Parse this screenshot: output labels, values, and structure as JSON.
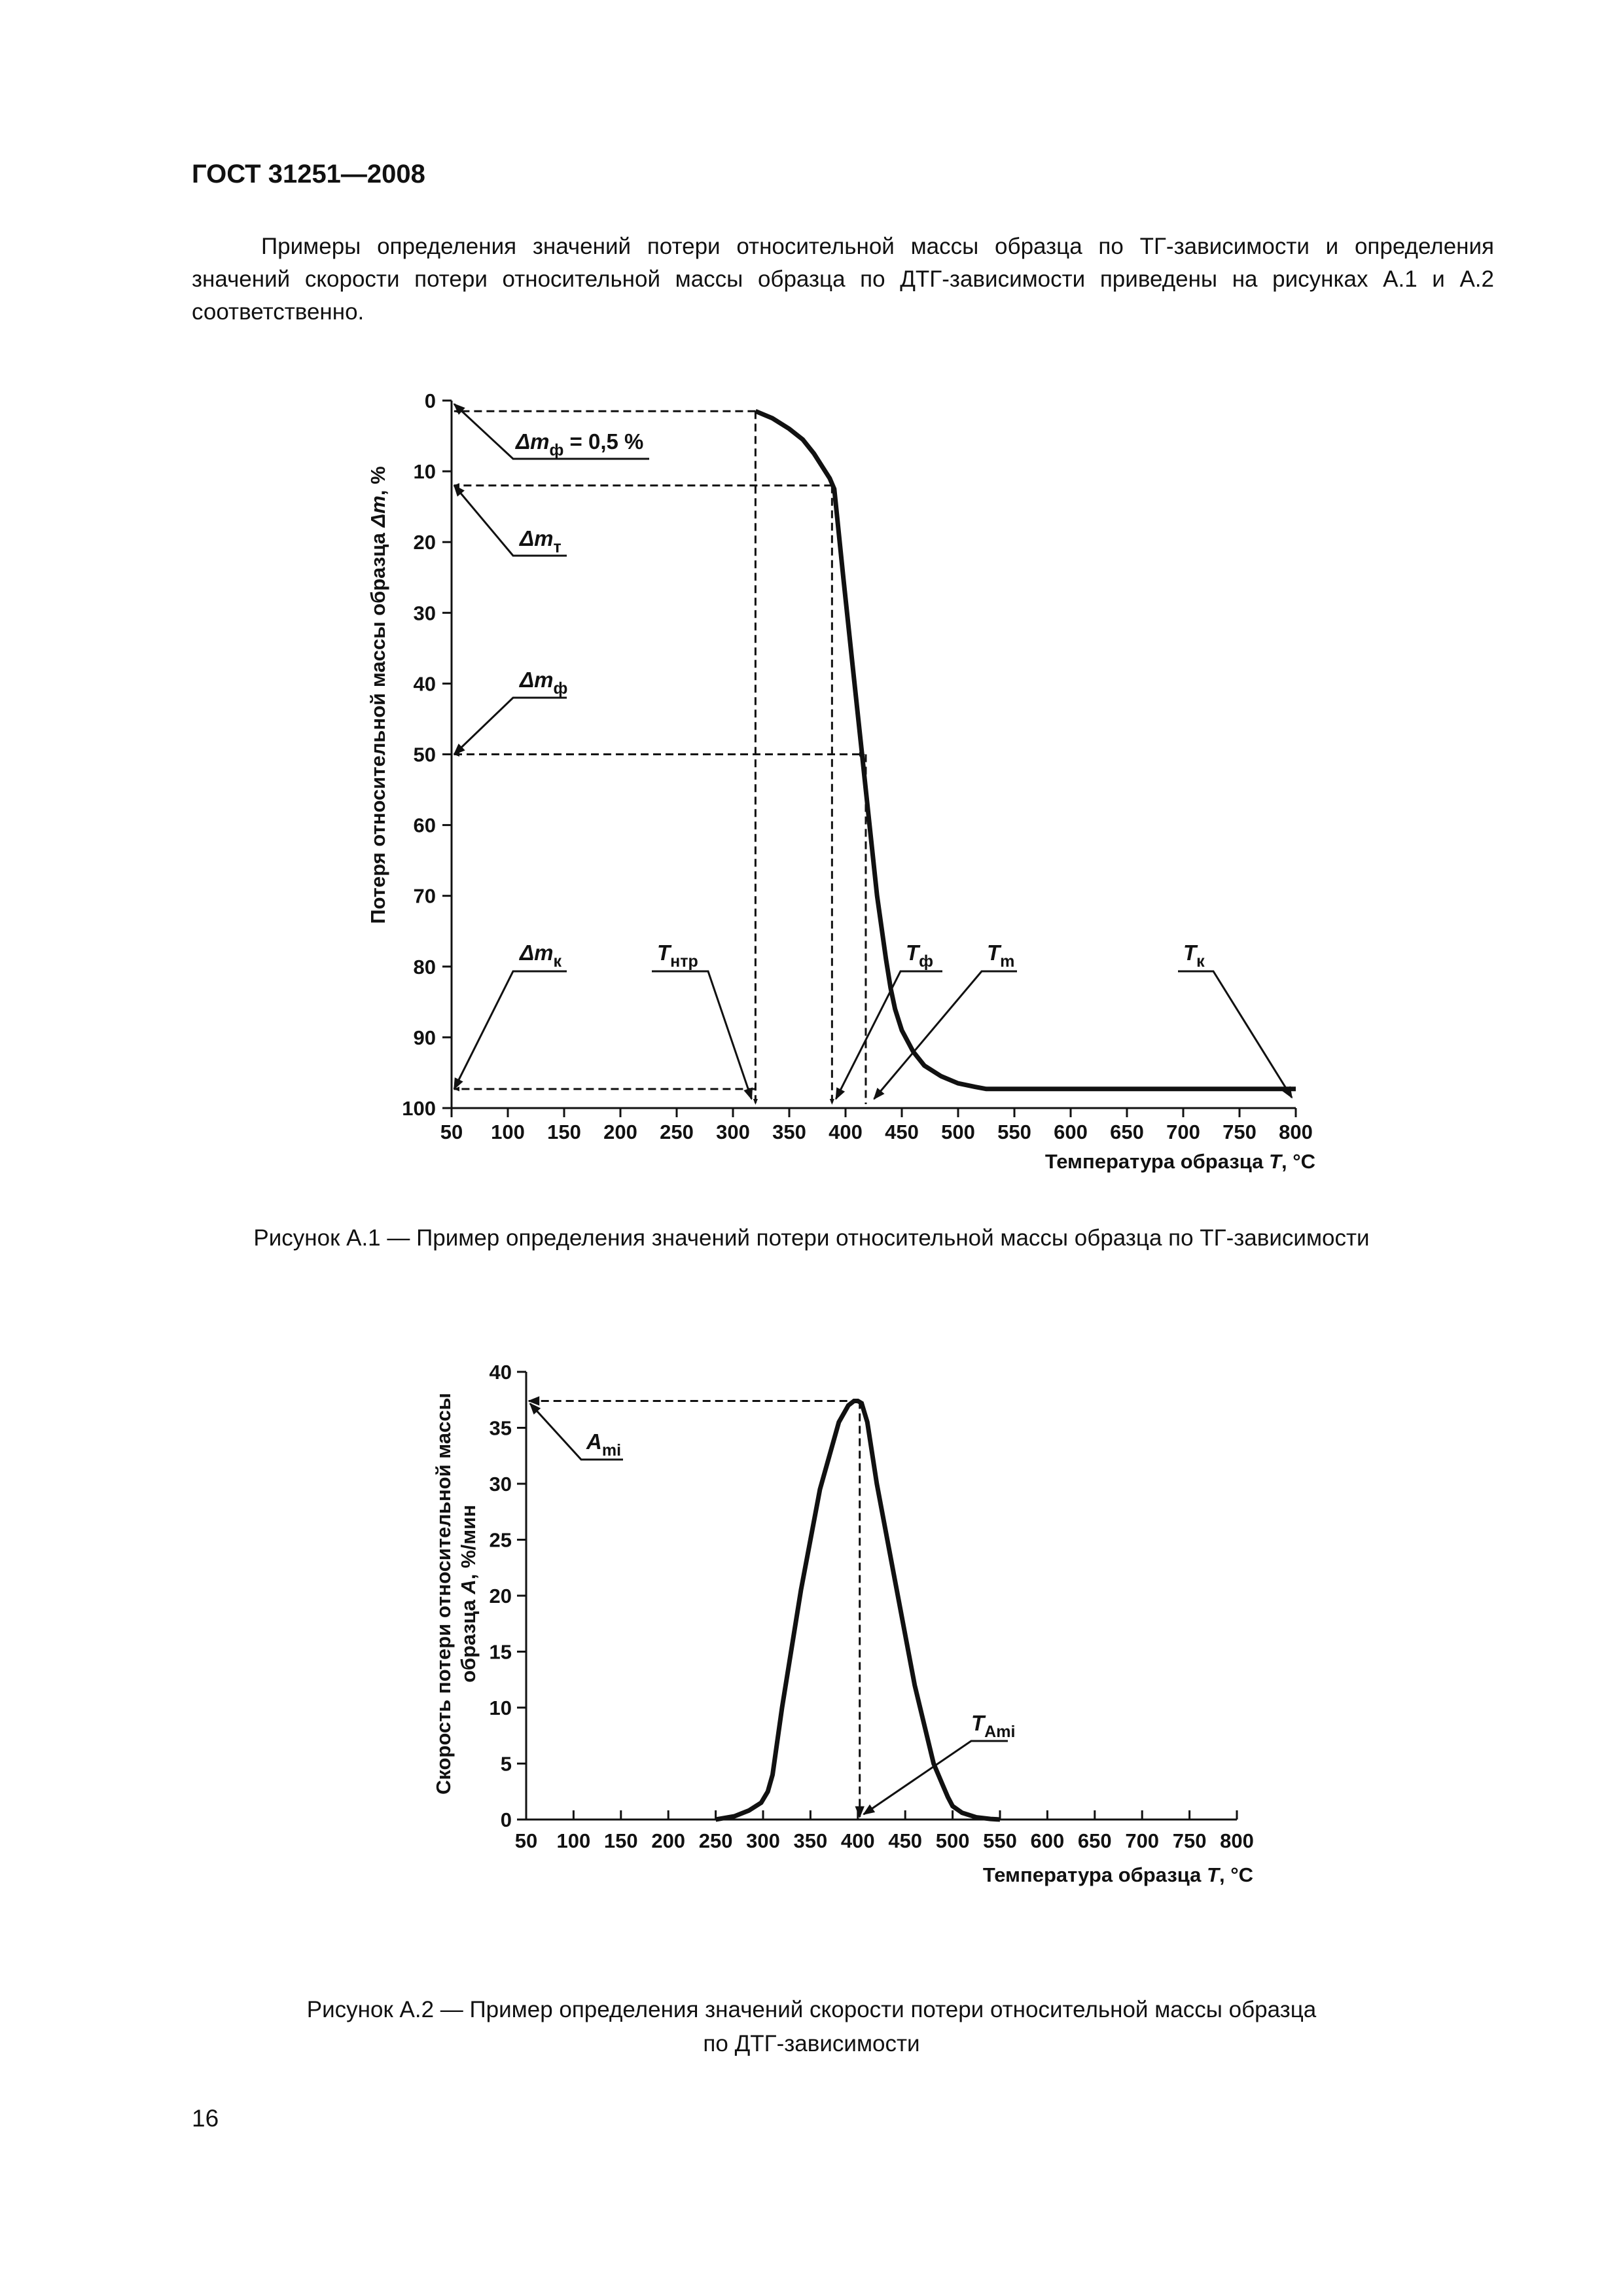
{
  "document": {
    "header": "ГОСТ 31251—2008",
    "intro": "Примеры определения значений потери относительной массы образца по ТГ-зависимости и определения значений скорости потери относительной массы образца по ДТГ-зависимости приведены на рисунках А.1 и А.2 соответственно.",
    "page_number": "16"
  },
  "chart_data": [
    {
      "type": "line",
      "figure": "A.1",
      "caption": "Рисунок А.1 — Пример определения значений потери относительной массы образца по ТГ-зависимости",
      "ylabel_prefix": "Потеря относительной массы образца ",
      "ylabel_symbol": "Δm",
      "ylabel_suffix": ", %",
      "xlabel_prefix": "Температура образца ",
      "xlabel_symbol": "T",
      "xlabel_suffix": ", °C",
      "xlim": [
        50,
        800
      ],
      "ylim": [
        0,
        100
      ],
      "y_inverted": true,
      "xticks": [
        50,
        100,
        150,
        200,
        250,
        300,
        350,
        400,
        450,
        500,
        550,
        600,
        650,
        700,
        750,
        800
      ],
      "yticks": [
        0,
        10,
        20,
        30,
        40,
        50,
        60,
        70,
        80,
        90,
        100
      ],
      "grid": false,
      "series": [
        {
          "x": [
            320,
            335,
            350,
            362,
            372,
            380,
            386,
            390,
            398,
            406,
            414,
            420,
            428,
            436,
            440,
            444,
            450,
            460,
            470,
            485,
            500,
            515,
            525,
            560,
            650,
            750,
            800
          ],
          "y": [
            1.5,
            2.5,
            4,
            5.5,
            7.5,
            9.5,
            11,
            12.5,
            25,
            37,
            49,
            58,
            70,
            79,
            83,
            86,
            89,
            92,
            94,
            95.5,
            96.5,
            97,
            97.3,
            97.3,
            97.3,
            97.3,
            97.3
          ]
        }
      ],
      "annotations": [
        {
          "base": "Δm",
          "sub": "ф",
          "rest": " = 0,5 %"
        },
        {
          "base": "Δm",
          "sub": "т",
          "rest": ""
        },
        {
          "base": "Δm",
          "sub": "ф",
          "rest": ""
        },
        {
          "base": "Δm",
          "sub": "к",
          "rest": ""
        },
        {
          "base": "T",
          "sub": "нтр",
          "rest": ""
        },
        {
          "base": "T",
          "sub": "ф",
          "rest": ""
        },
        {
          "base": "T",
          "sub": "m",
          "rest": ""
        },
        {
          "base": "T",
          "sub": "к",
          "rest": ""
        }
      ],
      "reference_points": {
        "onset_start": {
          "x": 320,
          "y": 1.5
        },
        "onset_end": {
          "x": 388,
          "y": 12
        },
        "half_loss": {
          "x": 418,
          "y": 50
        },
        "final_loss": 97.3,
        "T_m": 423
      }
    },
    {
      "type": "line",
      "figure": "A.2",
      "caption_line1": "Рисунок А.2 — Пример определения значений скорости потери относительной массы образца",
      "caption_line2": "по ДТГ-зависимости",
      "ylabel_line1": "Скорость потери относительной массы",
      "ylabel_line2_prefix": "образца ",
      "ylabel_line2_symbol": "A",
      "ylabel_line2_suffix": ", %/мин",
      "xlabel_prefix": "Температура образца ",
      "xlabel_symbol": "T",
      "xlabel_suffix": ", °C",
      "xlim": [
        50,
        800
      ],
      "ylim": [
        0,
        40
      ],
      "xticks": [
        50,
        100,
        150,
        200,
        250,
        300,
        350,
        400,
        450,
        500,
        550,
        600,
        650,
        700,
        750,
        800
      ],
      "yticks": [
        0,
        5,
        10,
        15,
        20,
        25,
        30,
        35,
        40
      ],
      "grid": false,
      "series": [
        {
          "x": [
            250,
            270,
            285,
            298,
            305,
            310,
            320,
            340,
            360,
            380,
            390,
            396,
            400,
            404,
            410,
            420,
            440,
            460,
            480,
            490,
            495,
            500,
            510,
            525,
            540,
            550
          ],
          "y": [
            0,
            0.3,
            0.8,
            1.5,
            2.5,
            4,
            10,
            20.5,
            29.5,
            35.5,
            37,
            37.4,
            37.4,
            37.2,
            35.5,
            30,
            21,
            12,
            5,
            3,
            2,
            1.2,
            0.6,
            0.2,
            0.05,
            0
          ]
        }
      ],
      "annotations": [
        {
          "base": "A",
          "sub": "mi"
        },
        {
          "base": "T",
          "sub": "Ami"
        }
      ],
      "reference_points": {
        "peak": {
          "x": 402,
          "y": 37.4
        }
      }
    }
  ]
}
